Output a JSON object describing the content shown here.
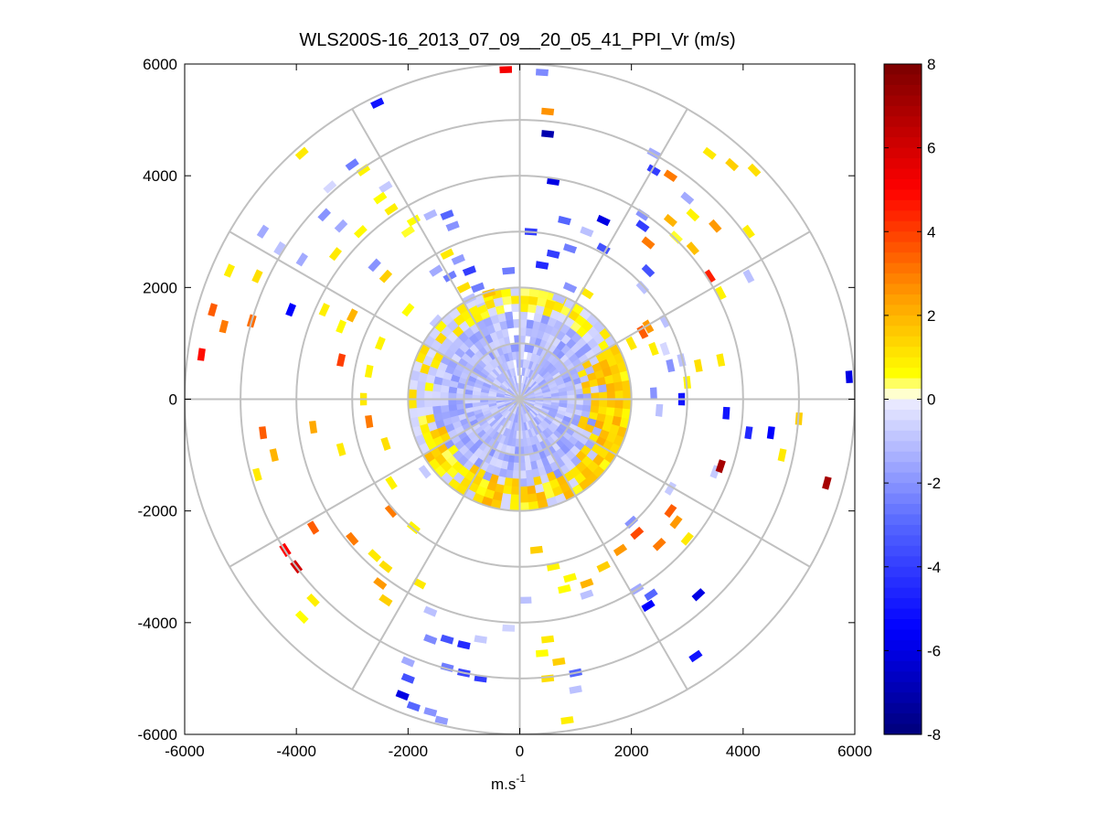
{
  "chart_data": {
    "type": "heatmap",
    "subtype": "polar-ppi",
    "title": "WLS200S-16_2013_07_09__20_05_41_PPI_Vr (m/s)",
    "xlabel_base": "m.s",
    "xlabel_exp": "-1",
    "ylabel": "",
    "xlim": [
      -6000,
      6000
    ],
    "ylim": [
      -6000,
      6000
    ],
    "xticks": [
      -6000,
      -4000,
      -2000,
      0,
      2000,
      4000,
      6000
    ],
    "yticks": [
      6000,
      4000,
      2000,
      0,
      -2000,
      -4000,
      -6000
    ],
    "xtick_labels": [
      "-6000",
      "-4000",
      "-2000",
      "0",
      "2000",
      "4000",
      "6000"
    ],
    "ytick_labels": [
      "6000",
      "4000",
      "2000",
      "0",
      "-2000",
      "-4000",
      "-6000"
    ],
    "polar_grid": {
      "rings": [
        1000,
        2000,
        3000,
        4000,
        5000,
        6000
      ],
      "spokes_deg": [
        0,
        30,
        60,
        90,
        120,
        150,
        180,
        210,
        240,
        270,
        300,
        330
      ]
    },
    "colorbar": {
      "clim": [
        -8,
        8
      ],
      "ticks": [
        8,
        6,
        4,
        2,
        0,
        -2,
        -4,
        -6,
        -8
      ],
      "tick_labels": [
        "8",
        "6",
        "4",
        "2",
        "0",
        "-2",
        "-4",
        "-6",
        "-8"
      ],
      "colormap_stops": [
        {
          "v": -8,
          "c": "#00007a"
        },
        {
          "v": -5.5,
          "c": "#0000ff"
        },
        {
          "v": -3,
          "c": "#5566ff"
        },
        {
          "v": 0,
          "c": "#eeeeff"
        },
        {
          "v": 0.05,
          "c": "#ffffee"
        },
        {
          "v": 0.6,
          "c": "#ffff00"
        },
        {
          "v": 2.5,
          "c": "#ff9900"
        },
        {
          "v": 5,
          "c": "#ff0000"
        },
        {
          "v": 8,
          "c": "#7a0000"
        }
      ]
    },
    "inner_field": {
      "description": "dense region of radial velocity within ~2000 m",
      "radius_m": 2000,
      "typical_value": -1.2
    },
    "scatter_cells": [
      {
        "x": -250,
        "y": 5900,
        "v": 5.2
      },
      {
        "x": 400,
        "y": 5850,
        "v": -2.2
      },
      {
        "x": 500,
        "y": 5150,
        "v": 2.6
      },
      {
        "x": 500,
        "y": 4750,
        "v": -7.0
      },
      {
        "x": -2550,
        "y": 5300,
        "v": -5.0
      },
      {
        "x": -3900,
        "y": 4400,
        "v": 1.0
      },
      {
        "x": -3000,
        "y": 4200,
        "v": -2.5
      },
      {
        "x": -2800,
        "y": 4100,
        "v": 0.8
      },
      {
        "x": -3400,
        "y": 3800,
        "v": -0.5
      },
      {
        "x": -2400,
        "y": 3800,
        "v": -0.8
      },
      {
        "x": -2500,
        "y": 3600,
        "v": 0.6
      },
      {
        "x": -2300,
        "y": 3400,
        "v": 0.9
      },
      {
        "x": -1900,
        "y": 3200,
        "v": 0.6
      },
      {
        "x": -1600,
        "y": 3300,
        "v": -1.2
      },
      {
        "x": -3500,
        "y": 3300,
        "v": -2.0
      },
      {
        "x": -3200,
        "y": 3100,
        "v": -1.5
      },
      {
        "x": -2850,
        "y": 3000,
        "v": 0.7
      },
      {
        "x": -2000,
        "y": 3000,
        "v": 0.5
      },
      {
        "x": -1300,
        "y": 3300,
        "v": -3.0
      },
      {
        "x": -1200,
        "y": 3100,
        "v": -2.0
      },
      {
        "x": -4600,
        "y": 3000,
        "v": -1.5
      },
      {
        "x": -4300,
        "y": 2700,
        "v": -1.0
      },
      {
        "x": -5200,
        "y": 2300,
        "v": 0.9
      },
      {
        "x": -4700,
        "y": 2200,
        "v": 1.2
      },
      {
        "x": -3900,
        "y": 2500,
        "v": -1.5
      },
      {
        "x": -3300,
        "y": 2600,
        "v": 1.0
      },
      {
        "x": -2600,
        "y": 2400,
        "v": -2.0
      },
      {
        "x": -2400,
        "y": 2200,
        "v": 1.5
      },
      {
        "x": -1500,
        "y": 2300,
        "v": -1.5
      },
      {
        "x": -1250,
        "y": 2200,
        "v": -2.5
      },
      {
        "x": -1000,
        "y": 2000,
        "v": 1.2
      },
      {
        "x": -900,
        "y": 2300,
        "v": -4.0
      },
      {
        "x": -750,
        "y": 2000,
        "v": -2.5
      },
      {
        "x": -550,
        "y": 1900,
        "v": 1.8
      },
      {
        "x": -5500,
        "y": 1600,
        "v": 3.5
      },
      {
        "x": -5300,
        "y": 1300,
        "v": 3.0
      },
      {
        "x": -4800,
        "y": 1400,
        "v": 3.2
      },
      {
        "x": -4100,
        "y": 1600,
        "v": -5.5
      },
      {
        "x": -3500,
        "y": 1600,
        "v": 0.9
      },
      {
        "x": -3200,
        "y": 1300,
        "v": 0.7
      },
      {
        "x": -3000,
        "y": 1500,
        "v": 2.0
      },
      {
        "x": -2500,
        "y": 1000,
        "v": 0.8
      },
      {
        "x": -2000,
        "y": 1600,
        "v": 0.6
      },
      {
        "x": -1500,
        "y": 1400,
        "v": -0.8
      },
      {
        "x": -5700,
        "y": 800,
        "v": 4.8
      },
      {
        "x": -3200,
        "y": 700,
        "v": 4.0
      },
      {
        "x": -2700,
        "y": 500,
        "v": 0.8
      },
      {
        "x": -2800,
        "y": 0,
        "v": 1.0
      },
      {
        "x": -4600,
        "y": -600,
        "v": 3.5
      },
      {
        "x": -3700,
        "y": -500,
        "v": 2.2
      },
      {
        "x": -4400,
        "y": -1000,
        "v": 2.0
      },
      {
        "x": -3200,
        "y": -900,
        "v": 1.0
      },
      {
        "x": -2700,
        "y": -400,
        "v": 3.0
      },
      {
        "x": -2400,
        "y": -800,
        "v": 1.2
      },
      {
        "x": -4700,
        "y": -1350,
        "v": 1.0
      },
      {
        "x": -2300,
        "y": -1500,
        "v": 0.8
      },
      {
        "x": -1700,
        "y": -1300,
        "v": -0.8
      },
      {
        "x": -2300,
        "y": -2000,
        "v": 3.0
      },
      {
        "x": -1900,
        "y": -2300,
        "v": 0.8
      },
      {
        "x": -3700,
        "y": -2300,
        "v": 3.5
      },
      {
        "x": -3000,
        "y": -2500,
        "v": 3.0
      },
      {
        "x": -4200,
        "y": -2700,
        "v": 5.0
      },
      {
        "x": -4000,
        "y": -3000,
        "v": 6.0
      },
      {
        "x": -2600,
        "y": -2800,
        "v": 1.0
      },
      {
        "x": -2400,
        "y": -3000,
        "v": 1.2
      },
      {
        "x": -2500,
        "y": -3300,
        "v": 2.5
      },
      {
        "x": -2400,
        "y": -3600,
        "v": 1.5
      },
      {
        "x": -1800,
        "y": -3300,
        "v": 1.0
      },
      {
        "x": -3700,
        "y": -3600,
        "v": 0.9
      },
      {
        "x": -3900,
        "y": -3900,
        "v": 0.6
      },
      {
        "x": -1600,
        "y": -3800,
        "v": -1.0
      },
      {
        "x": -1600,
        "y": -4300,
        "v": -2.2
      },
      {
        "x": -1300,
        "y": -4300,
        "v": -3.5
      },
      {
        "x": -1000,
        "y": -4400,
        "v": -4.5
      },
      {
        "x": -700,
        "y": -4300,
        "v": -0.8
      },
      {
        "x": -200,
        "y": -4100,
        "v": -0.6
      },
      {
        "x": -2000,
        "y": -4700,
        "v": -1.5
      },
      {
        "x": -2000,
        "y": -5000,
        "v": -3.5
      },
      {
        "x": -1300,
        "y": -4800,
        "v": -2.5
      },
      {
        "x": -1000,
        "y": -4900,
        "v": -3.8
      },
      {
        "x": -700,
        "y": -5000,
        "v": -4.0
      },
      {
        "x": -2100,
        "y": -5300,
        "v": -6.0
      },
      {
        "x": -1900,
        "y": -5500,
        "v": -3.0
      },
      {
        "x": -1600,
        "y": -5600,
        "v": -2.0
      },
      {
        "x": -1400,
        "y": -5750,
        "v": -1.8
      },
      {
        "x": 500,
        "y": -4300,
        "v": 1.0
      },
      {
        "x": 700,
        "y": -4700,
        "v": 1.5
      },
      {
        "x": 500,
        "y": -5000,
        "v": 1.2
      },
      {
        "x": 1000,
        "y": -4900,
        "v": -3.0
      },
      {
        "x": 1000,
        "y": -5200,
        "v": -1.0
      },
      {
        "x": 850,
        "y": -5750,
        "v": 0.9
      },
      {
        "x": 400,
        "y": -4550,
        "v": 0.6
      },
      {
        "x": 1200,
        "y": -3500,
        "v": -1.0
      },
      {
        "x": 2100,
        "y": -3400,
        "v": -1.5
      },
      {
        "x": 2350,
        "y": -3500,
        "v": -3.0
      },
      {
        "x": 2300,
        "y": -3700,
        "v": -5.5
      },
      {
        "x": 3200,
        "y": -3500,
        "v": -6.0
      },
      {
        "x": 3150,
        "y": -4600,
        "v": -5.0
      },
      {
        "x": 3000,
        "y": -2500,
        "v": 1.0
      },
      {
        "x": 2800,
        "y": -2200,
        "v": 2.5
      },
      {
        "x": 2700,
        "y": -2000,
        "v": 3.5
      },
      {
        "x": 2500,
        "y": -2600,
        "v": 3.0
      },
      {
        "x": 2100,
        "y": -2400,
        "v": 3.8
      },
      {
        "x": 1800,
        "y": -2700,
        "v": 2.5
      },
      {
        "x": 2000,
        "y": -2200,
        "v": -2.0
      },
      {
        "x": 1500,
        "y": -3000,
        "v": 1.5
      },
      {
        "x": 1200,
        "y": -3300,
        "v": 2.0
      },
      {
        "x": 900,
        "y": -3200,
        "v": 0.7
      },
      {
        "x": 600,
        "y": -3000,
        "v": 0.8
      },
      {
        "x": 300,
        "y": -2700,
        "v": 1.5
      },
      {
        "x": 100,
        "y": -3600,
        "v": -1.0
      },
      {
        "x": 800,
        "y": -3400,
        "v": 0.6
      },
      {
        "x": 2700,
        "y": -1600,
        "v": -0.8
      },
      {
        "x": 3500,
        "y": -1300,
        "v": -0.8
      },
      {
        "x": 3600,
        "y": -1200,
        "v": 7.0
      },
      {
        "x": 5500,
        "y": -1500,
        "v": 7.0
      },
      {
        "x": 4700,
        "y": -1000,
        "v": 1.0
      },
      {
        "x": 5000,
        "y": -350,
        "v": 1.5
      },
      {
        "x": 4500,
        "y": -600,
        "v": -5.5
      },
      {
        "x": 4100,
        "y": -600,
        "v": -4.5
      },
      {
        "x": 3700,
        "y": -250,
        "v": -5.0
      },
      {
        "x": 2900,
        "y": 0,
        "v": -5.0
      },
      {
        "x": 2500,
        "y": -200,
        "v": -1.0
      },
      {
        "x": 2400,
        "y": 100,
        "v": -2.0
      },
      {
        "x": 3000,
        "y": 300,
        "v": 0.8
      },
      {
        "x": 3200,
        "y": 600,
        "v": 1.2
      },
      {
        "x": 3600,
        "y": 700,
        "v": 1.0
      },
      {
        "x": 2900,
        "y": 700,
        "v": -1.0
      },
      {
        "x": 2700,
        "y": 600,
        "v": -2.0
      },
      {
        "x": 2400,
        "y": 900,
        "v": 0.9
      },
      {
        "x": 2600,
        "y": 900,
        "v": -0.5
      },
      {
        "x": 5900,
        "y": 400,
        "v": -6.0
      },
      {
        "x": 2600,
        "y": 1400,
        "v": -1.0
      },
      {
        "x": 2300,
        "y": 1300,
        "v": 2.5
      },
      {
        "x": 2200,
        "y": 1200,
        "v": 3.5
      },
      {
        "x": 2000,
        "y": 1000,
        "v": 1.0
      },
      {
        "x": 3400,
        "y": 2200,
        "v": 4.5
      },
      {
        "x": 3600,
        "y": 1900,
        "v": 0.8
      },
      {
        "x": 4100,
        "y": 2200,
        "v": -1.0
      },
      {
        "x": 3100,
        "y": 2700,
        "v": 1.8
      },
      {
        "x": 2800,
        "y": 2900,
        "v": 0.5
      },
      {
        "x": 2700,
        "y": 3200,
        "v": 2.0
      },
      {
        "x": 2300,
        "y": 2800,
        "v": 3.0
      },
      {
        "x": 2200,
        "y": 3100,
        "v": -4.0
      },
      {
        "x": 2200,
        "y": 3300,
        "v": -2.0
      },
      {
        "x": 1500,
        "y": 3200,
        "v": -6.0
      },
      {
        "x": 2300,
        "y": 2300,
        "v": -3.5
      },
      {
        "x": 2200,
        "y": 2000,
        "v": -1.0
      },
      {
        "x": 1500,
        "y": 2700,
        "v": -3.5
      },
      {
        "x": 1200,
        "y": 3000,
        "v": -1.0
      },
      {
        "x": 800,
        "y": 3200,
        "v": -3.0
      },
      {
        "x": 600,
        "y": 2600,
        "v": -4.0
      },
      {
        "x": 400,
        "y": 2400,
        "v": -4.5
      },
      {
        "x": 900,
        "y": 2000,
        "v": -2.0
      },
      {
        "x": 700,
        "y": 1800,
        "v": -1.0
      },
      {
        "x": 1200,
        "y": 1900,
        "v": 1.0
      },
      {
        "x": 2400,
        "y": 4400,
        "v": -1.5
      },
      {
        "x": 2400,
        "y": 4100,
        "v": -4.0
      },
      {
        "x": 2700,
        "y": 4000,
        "v": 3.0
      },
      {
        "x": 3400,
        "y": 4400,
        "v": 1.0
      },
      {
        "x": 3800,
        "y": 4200,
        "v": 1.5
      },
      {
        "x": 4200,
        "y": 4100,
        "v": 1.2
      },
      {
        "x": 3000,
        "y": 3600,
        "v": -1.5
      },
      {
        "x": 4100,
        "y": 3000,
        "v": 0.9
      },
      {
        "x": 3100,
        "y": 3300,
        "v": 0.8
      },
      {
        "x": 3500,
        "y": 3100,
        "v": 2.5
      },
      {
        "x": 600,
        "y": 3900,
        "v": -6.0
      },
      {
        "x": 200,
        "y": 3000,
        "v": -4.0
      },
      {
        "x": 900,
        "y": 2700,
        "v": -2.5
      },
      {
        "x": -200,
        "y": 2300,
        "v": -2.5
      },
      {
        "x": -1100,
        "y": 2500,
        "v": -1.8
      },
      {
        "x": -1300,
        "y": 2600,
        "v": 1.0
      },
      {
        "x": -900,
        "y": 1800,
        "v": -1.0
      },
      {
        "x": -700,
        "y": 1600,
        "v": 0.8
      }
    ]
  }
}
